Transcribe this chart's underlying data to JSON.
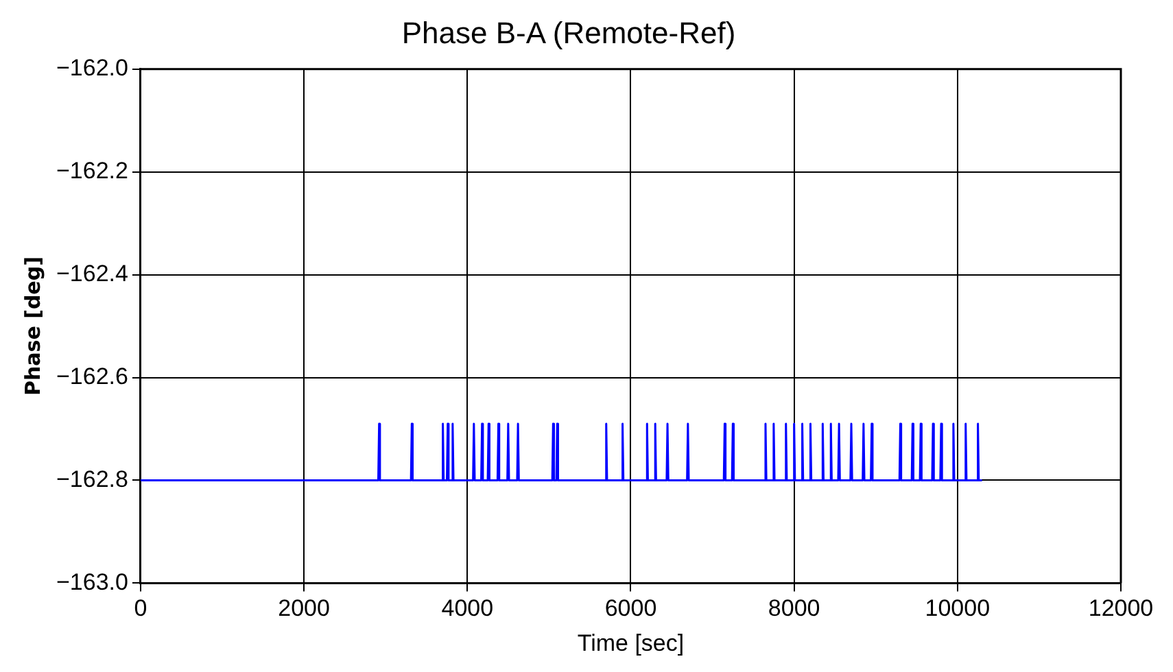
{
  "chart_data": {
    "type": "line",
    "title": "Phase B-A (Remote-Ref)",
    "xlabel": "Time [sec]",
    "ylabel": "Phase [deg]",
    "xlim": [
      0,
      12000
    ],
    "xticks": [
      0,
      2000,
      4000,
      6000,
      8000,
      10000,
      12000
    ],
    "ylim": [
      -163.0,
      -162.0
    ],
    "yticks": [
      {
        "value": -163.0,
        "label": "−163.0"
      },
      {
        "value": -162.8,
        "label": "−162.8"
      },
      {
        "value": -162.6,
        "label": "−162.6"
      },
      {
        "value": -162.4,
        "label": "−162.4"
      },
      {
        "value": -162.2,
        "label": "−162.2"
      },
      {
        "value": -162.0,
        "label": "−162.0"
      }
    ],
    "grid": true,
    "legend": false,
    "marker": "none",
    "series": [
      {
        "color": "#0000ff",
        "x": [
          0,
          2910,
          2920,
          2930,
          3310,
          3320,
          3330,
          3690,
          3700,
          3710,
          3750,
          3760,
          3770,
          3810,
          3820,
          3830,
          4070,
          4080,
          4090,
          4170,
          4180,
          4190,
          4250,
          4260,
          4270,
          4370,
          4380,
          4390,
          4490,
          4500,
          4510,
          4610,
          4620,
          4630,
          5040,
          5050,
          5060,
          5090,
          5100,
          5110,
          5690,
          5700,
          5710,
          5890,
          5900,
          5910,
          6190,
          6200,
          6210,
          6290,
          6300,
          6310,
          6440,
          6450,
          6460,
          6690,
          6700,
          6710,
          7140,
          7150,
          7160,
          7240,
          7250,
          7260,
          7640,
          7650,
          7660,
          7740,
          7750,
          7760,
          7890,
          7900,
          7910,
          7990,
          8000,
          8010,
          8090,
          8100,
          8110,
          8190,
          8200,
          8210,
          8340,
          8350,
          8360,
          8440,
          8450,
          8460,
          8540,
          8550,
          8560,
          8690,
          8700,
          8710,
          8840,
          8850,
          8860,
          8940,
          8950,
          8960,
          9290,
          9300,
          9310,
          9440,
          9450,
          9460,
          9540,
          9550,
          9560,
          9690,
          9700,
          9710,
          9790,
          9800,
          9810,
          9940,
          9950,
          9960,
          10090,
          10100,
          10110,
          10240,
          10250,
          10260,
          10300
        ],
        "values": [
          -162.8,
          -162.8,
          -162.69,
          -162.8,
          -162.8,
          -162.69,
          -162.8,
          -162.8,
          -162.69,
          -162.8,
          -162.8,
          -162.69,
          -162.8,
          -162.8,
          -162.69,
          -162.8,
          -162.8,
          -162.69,
          -162.8,
          -162.8,
          -162.69,
          -162.8,
          -162.8,
          -162.69,
          -162.8,
          -162.8,
          -162.69,
          -162.8,
          -162.8,
          -162.69,
          -162.8,
          -162.8,
          -162.69,
          -162.8,
          -162.8,
          -162.69,
          -162.8,
          -162.8,
          -162.69,
          -162.8,
          -162.8,
          -162.69,
          -162.8,
          -162.8,
          -162.69,
          -162.8,
          -162.8,
          -162.69,
          -162.8,
          -162.8,
          -162.69,
          -162.8,
          -162.8,
          -162.69,
          -162.8,
          -162.8,
          -162.69,
          -162.8,
          -162.8,
          -162.69,
          -162.8,
          -162.8,
          -162.69,
          -162.8,
          -162.8,
          -162.69,
          -162.8,
          -162.8,
          -162.69,
          -162.8,
          -162.8,
          -162.69,
          -162.8,
          -162.8,
          -162.69,
          -162.8,
          -162.8,
          -162.69,
          -162.8,
          -162.8,
          -162.69,
          -162.8,
          -162.8,
          -162.69,
          -162.8,
          -162.8,
          -162.69,
          -162.8,
          -162.8,
          -162.69,
          -162.8,
          -162.8,
          -162.69,
          -162.8,
          -162.8,
          -162.69,
          -162.8,
          -162.8,
          -162.69,
          -162.8,
          -162.8,
          -162.69,
          -162.8,
          -162.8,
          -162.69,
          -162.8,
          -162.8,
          -162.69,
          -162.8,
          -162.8,
          -162.69,
          -162.8,
          -162.8,
          -162.69,
          -162.8,
          -162.8,
          -162.69,
          -162.8,
          -162.8,
          -162.69,
          -162.8,
          -162.8,
          -162.69,
          -162.8,
          -162.8
        ]
      }
    ]
  }
}
